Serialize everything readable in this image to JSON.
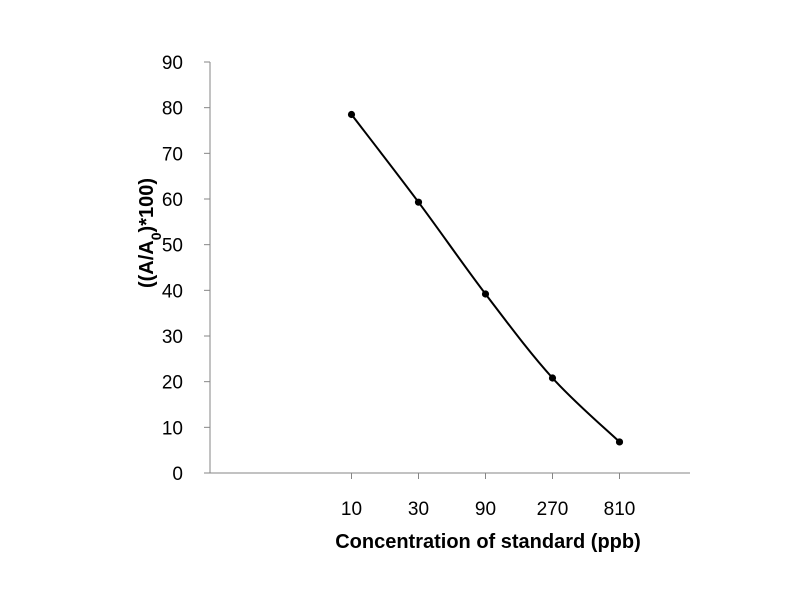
{
  "chart_data": {
    "type": "line",
    "categories": [
      "10",
      "30",
      "90",
      "270",
      "810"
    ],
    "series": [
      {
        "values": [
          78.5,
          59.3,
          39.2,
          20.8,
          6.8
        ]
      }
    ],
    "xlabel": "Concentration of standard (ppb)",
    "ylabel": {
      "prefix": "((A/A",
      "subscript": "0",
      "suffix": ")*100)"
    },
    "ylim": [
      0,
      90
    ],
    "yticks": [
      "0",
      "10",
      "20",
      "30",
      "40",
      "50",
      "60",
      "70",
      "80",
      "90"
    ],
    "grid": false,
    "legend": "none",
    "colors": {
      "axis": "#868686",
      "line": "#000000",
      "marker": "#000000"
    }
  }
}
